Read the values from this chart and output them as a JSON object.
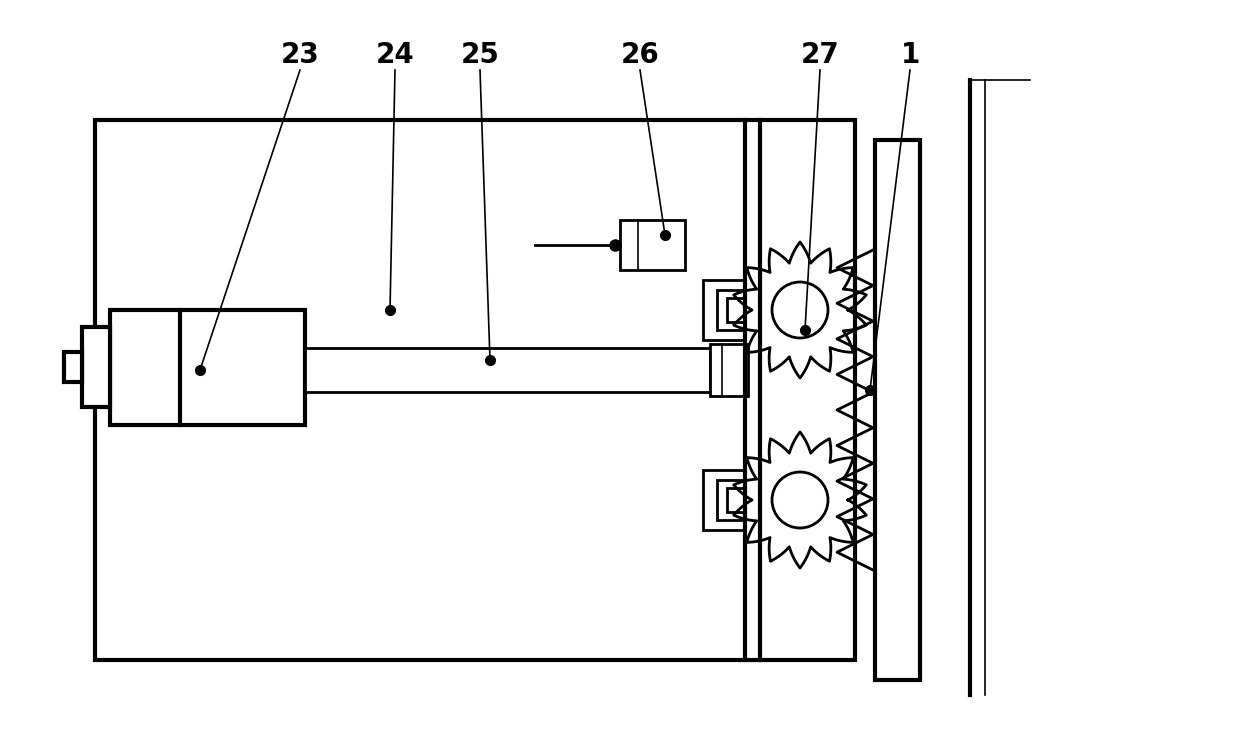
{
  "bg_color": "#ffffff",
  "line_color": "#000000",
  "lw_main": 2.0,
  "lw_thin": 1.2,
  "lw_thick": 3.0,
  "fig_w": 12.4,
  "fig_h": 7.35,
  "dpi": 100
}
